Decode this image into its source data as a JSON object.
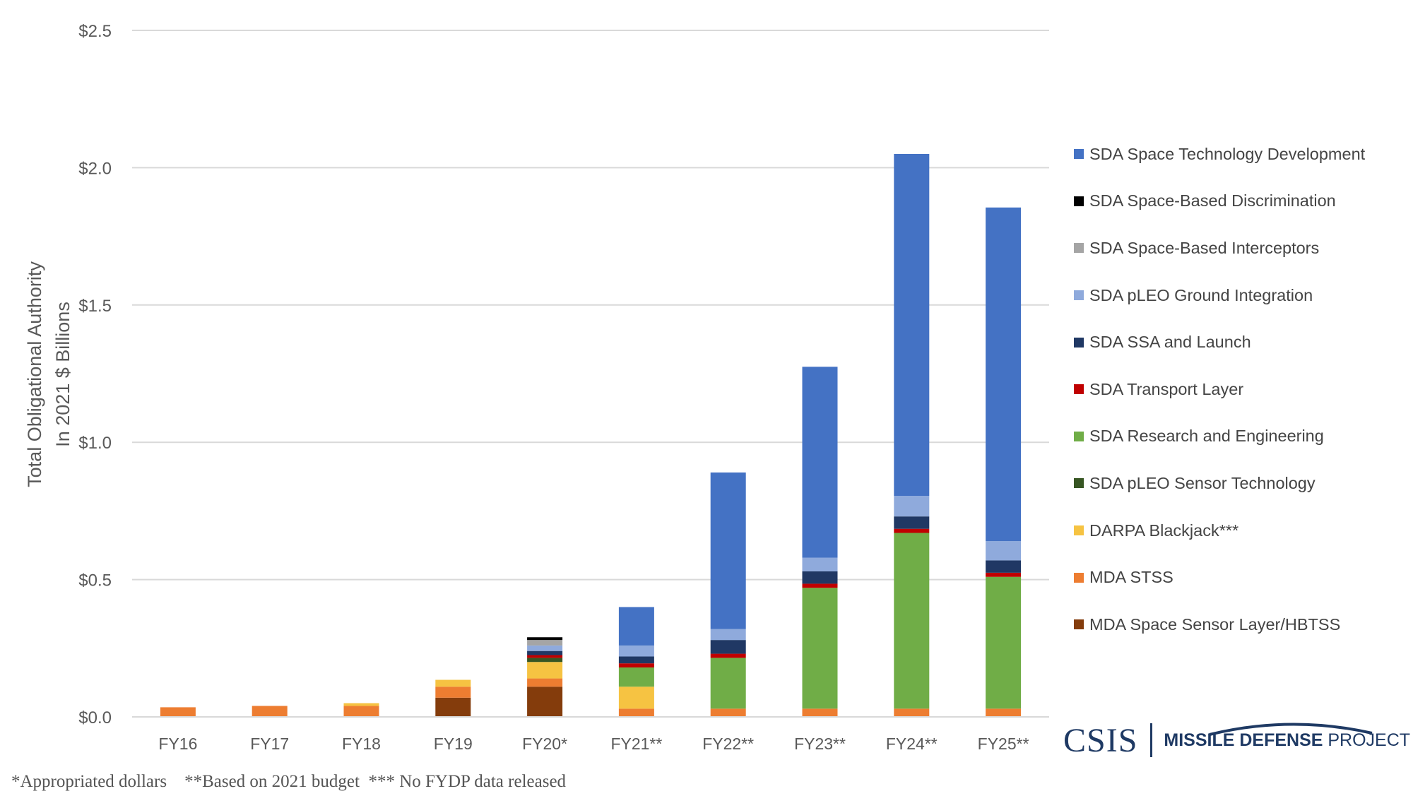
{
  "chart_data": {
    "type": "bar",
    "stacked": true,
    "ylabel": "Total Obligational Authority\nIn 2021 $ Billions",
    "ylim": [
      0,
      2.5
    ],
    "y_ticks": [
      "$0.0",
      "$0.5",
      "$1.0",
      "$1.5",
      "$2.0",
      "$2.5"
    ],
    "y_tick_values": [
      0,
      0.5,
      1.0,
      1.5,
      2.0,
      2.5
    ],
    "grid": true,
    "legend_position": "right",
    "categories": [
      "FY16",
      "FY17",
      "FY18",
      "FY19",
      "FY20*",
      "FY21**",
      "FY22**",
      "FY23**",
      "FY24**",
      "FY25**"
    ],
    "series": [
      {
        "name": "MDA Space Sensor Layer/HBTSS",
        "color": "#843c0c",
        "values": [
          0,
          0,
          0,
          0.07,
          0.11,
          0,
          0,
          0,
          0,
          0
        ]
      },
      {
        "name": "MDA STSS",
        "color": "#ed7d31",
        "values": [
          0.035,
          0.04,
          0.04,
          0.04,
          0.03,
          0.03,
          0.03,
          0.03,
          0.03,
          0.03
        ]
      },
      {
        "name": "DARPA Blackjack***",
        "color": "#f6c342",
        "values": [
          0,
          0,
          0.01,
          0.025,
          0.06,
          0.08,
          0,
          0,
          0,
          0
        ]
      },
      {
        "name": "SDA pLEO Sensor Technology",
        "color": "#375623",
        "values": [
          0,
          0,
          0,
          0,
          0.015,
          0,
          0,
          0,
          0,
          0
        ]
      },
      {
        "name": "SDA Research and Engineering",
        "color": "#70ad47",
        "values": [
          0,
          0,
          0,
          0,
          0,
          0.07,
          0.185,
          0.44,
          0.64,
          0.48
        ]
      },
      {
        "name": "SDA Transport Layer",
        "color": "#c00000",
        "values": [
          0,
          0,
          0,
          0,
          0.01,
          0.015,
          0.015,
          0.015,
          0.015,
          0.015
        ]
      },
      {
        "name": "SDA SSA and Launch",
        "color": "#203864",
        "values": [
          0,
          0,
          0,
          0,
          0.015,
          0.025,
          0.05,
          0.045,
          0.045,
          0.045
        ]
      },
      {
        "name": "SDA pLEO Ground Integration",
        "color": "#8faadc",
        "values": [
          0,
          0,
          0,
          0,
          0.02,
          0.04,
          0.04,
          0.05,
          0.075,
          0.07
        ]
      },
      {
        "name": "SDA Space-Based Interceptors",
        "color": "#a5a5a5",
        "values": [
          0,
          0,
          0,
          0,
          0.02,
          0,
          0,
          0,
          0,
          0
        ]
      },
      {
        "name": "SDA Space-Based Discrimination",
        "color": "#000000",
        "values": [
          0,
          0,
          0,
          0,
          0.01,
          0,
          0,
          0,
          0,
          0
        ]
      },
      {
        "name": "SDA Space Technology Development",
        "color": "#4472c4",
        "values": [
          0,
          0,
          0,
          0,
          0,
          0.14,
          0.57,
          0.695,
          1.245,
          1.215
        ]
      }
    ],
    "legend_order": [
      "SDA Space Technology Development",
      "SDA Space-Based Discrimination",
      "SDA Space-Based Interceptors",
      "SDA pLEO Ground Integration",
      "SDA SSA and Launch",
      "SDA Transport Layer",
      "SDA Research and Engineering",
      "SDA pLEO Sensor Technology",
      "DARPA Blackjack***",
      "MDA STSS",
      "MDA Space Sensor Layer/HBTSS"
    ]
  },
  "footnote": "*Appropriated dollars    **Based on 2021 budget  *** No FYDP data released",
  "logo": {
    "csis": "CSIS",
    "mdp_bold": "MISSILE DEFENSE",
    "mdp_light": " PROJECT"
  }
}
